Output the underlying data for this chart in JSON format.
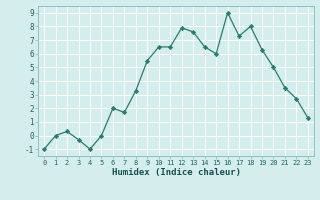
{
  "x": [
    0,
    1,
    2,
    3,
    4,
    5,
    6,
    7,
    8,
    9,
    10,
    11,
    12,
    13,
    14,
    15,
    16,
    17,
    18,
    19,
    20,
    21,
    22,
    23
  ],
  "y": [
    -1,
    0,
    0.3,
    -0.3,
    -1,
    0,
    2,
    1.7,
    3.3,
    5.5,
    6.5,
    6.5,
    7.9,
    7.6,
    6.5,
    6.0,
    9.0,
    7.3,
    8.0,
    6.3,
    5.0,
    3.5,
    2.7,
    1.3
  ],
  "xlabel": "Humidex (Indice chaleur)",
  "ylabel": "",
  "line_color": "#2e7b6e",
  "marker": "D",
  "marker_size": 2.2,
  "bg_color": "#d4eded",
  "grid_major_color": "#b8d8d8",
  "grid_minor_color": "#c8e4e4",
  "xlim": [
    -0.5,
    23.5
  ],
  "ylim": [
    -1.5,
    9.5
  ],
  "xticks": [
    0,
    1,
    2,
    3,
    4,
    5,
    6,
    7,
    8,
    9,
    10,
    11,
    12,
    13,
    14,
    15,
    16,
    17,
    18,
    19,
    20,
    21,
    22,
    23
  ],
  "yticks": [
    -1,
    0,
    1,
    2,
    3,
    4,
    5,
    6,
    7,
    8,
    9
  ],
  "tick_label_color": "#2a6060",
  "xlabel_color": "#1a4f4f",
  "spine_color": "#8ab8b8"
}
